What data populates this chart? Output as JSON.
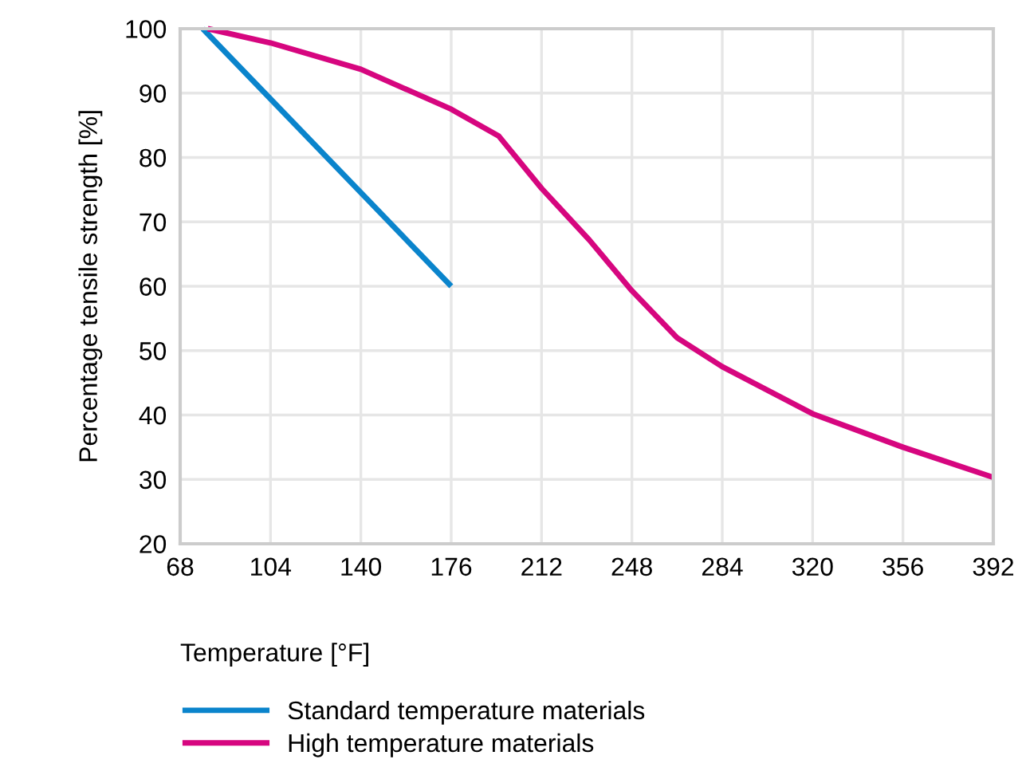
{
  "chart_data": {
    "type": "line",
    "xlabel": "Temperature [°F]",
    "ylabel": "Percentage tensile strength [%]",
    "series": [
      {
        "name": "Standard temperature materials",
        "color": "#0a84cc",
        "x": [
          77,
          176
        ],
        "values": [
          100,
          60
        ]
      },
      {
        "name": "High temperature materials",
        "color": "#d6067f",
        "x": [
          79,
          104,
          140,
          176,
          195,
          212,
          231,
          248,
          266,
          284,
          320,
          356,
          392
        ],
        "values": [
          100,
          97.8,
          93.7,
          87.5,
          83.3,
          75.2,
          67.2,
          59.3,
          52,
          47.5,
          40.2,
          35,
          30.3
        ]
      }
    ],
    "xlim": [
      68,
      392
    ],
    "xticks": [
      68,
      104,
      140,
      176,
      212,
      248,
      284,
      320,
      356,
      392
    ],
    "ylim": [
      20,
      100
    ],
    "yticks": [
      20,
      30,
      40,
      50,
      60,
      70,
      80,
      90,
      100
    ],
    "grid": true,
    "legend": "bottom",
    "marker": "none",
    "line_style": "solid"
  }
}
